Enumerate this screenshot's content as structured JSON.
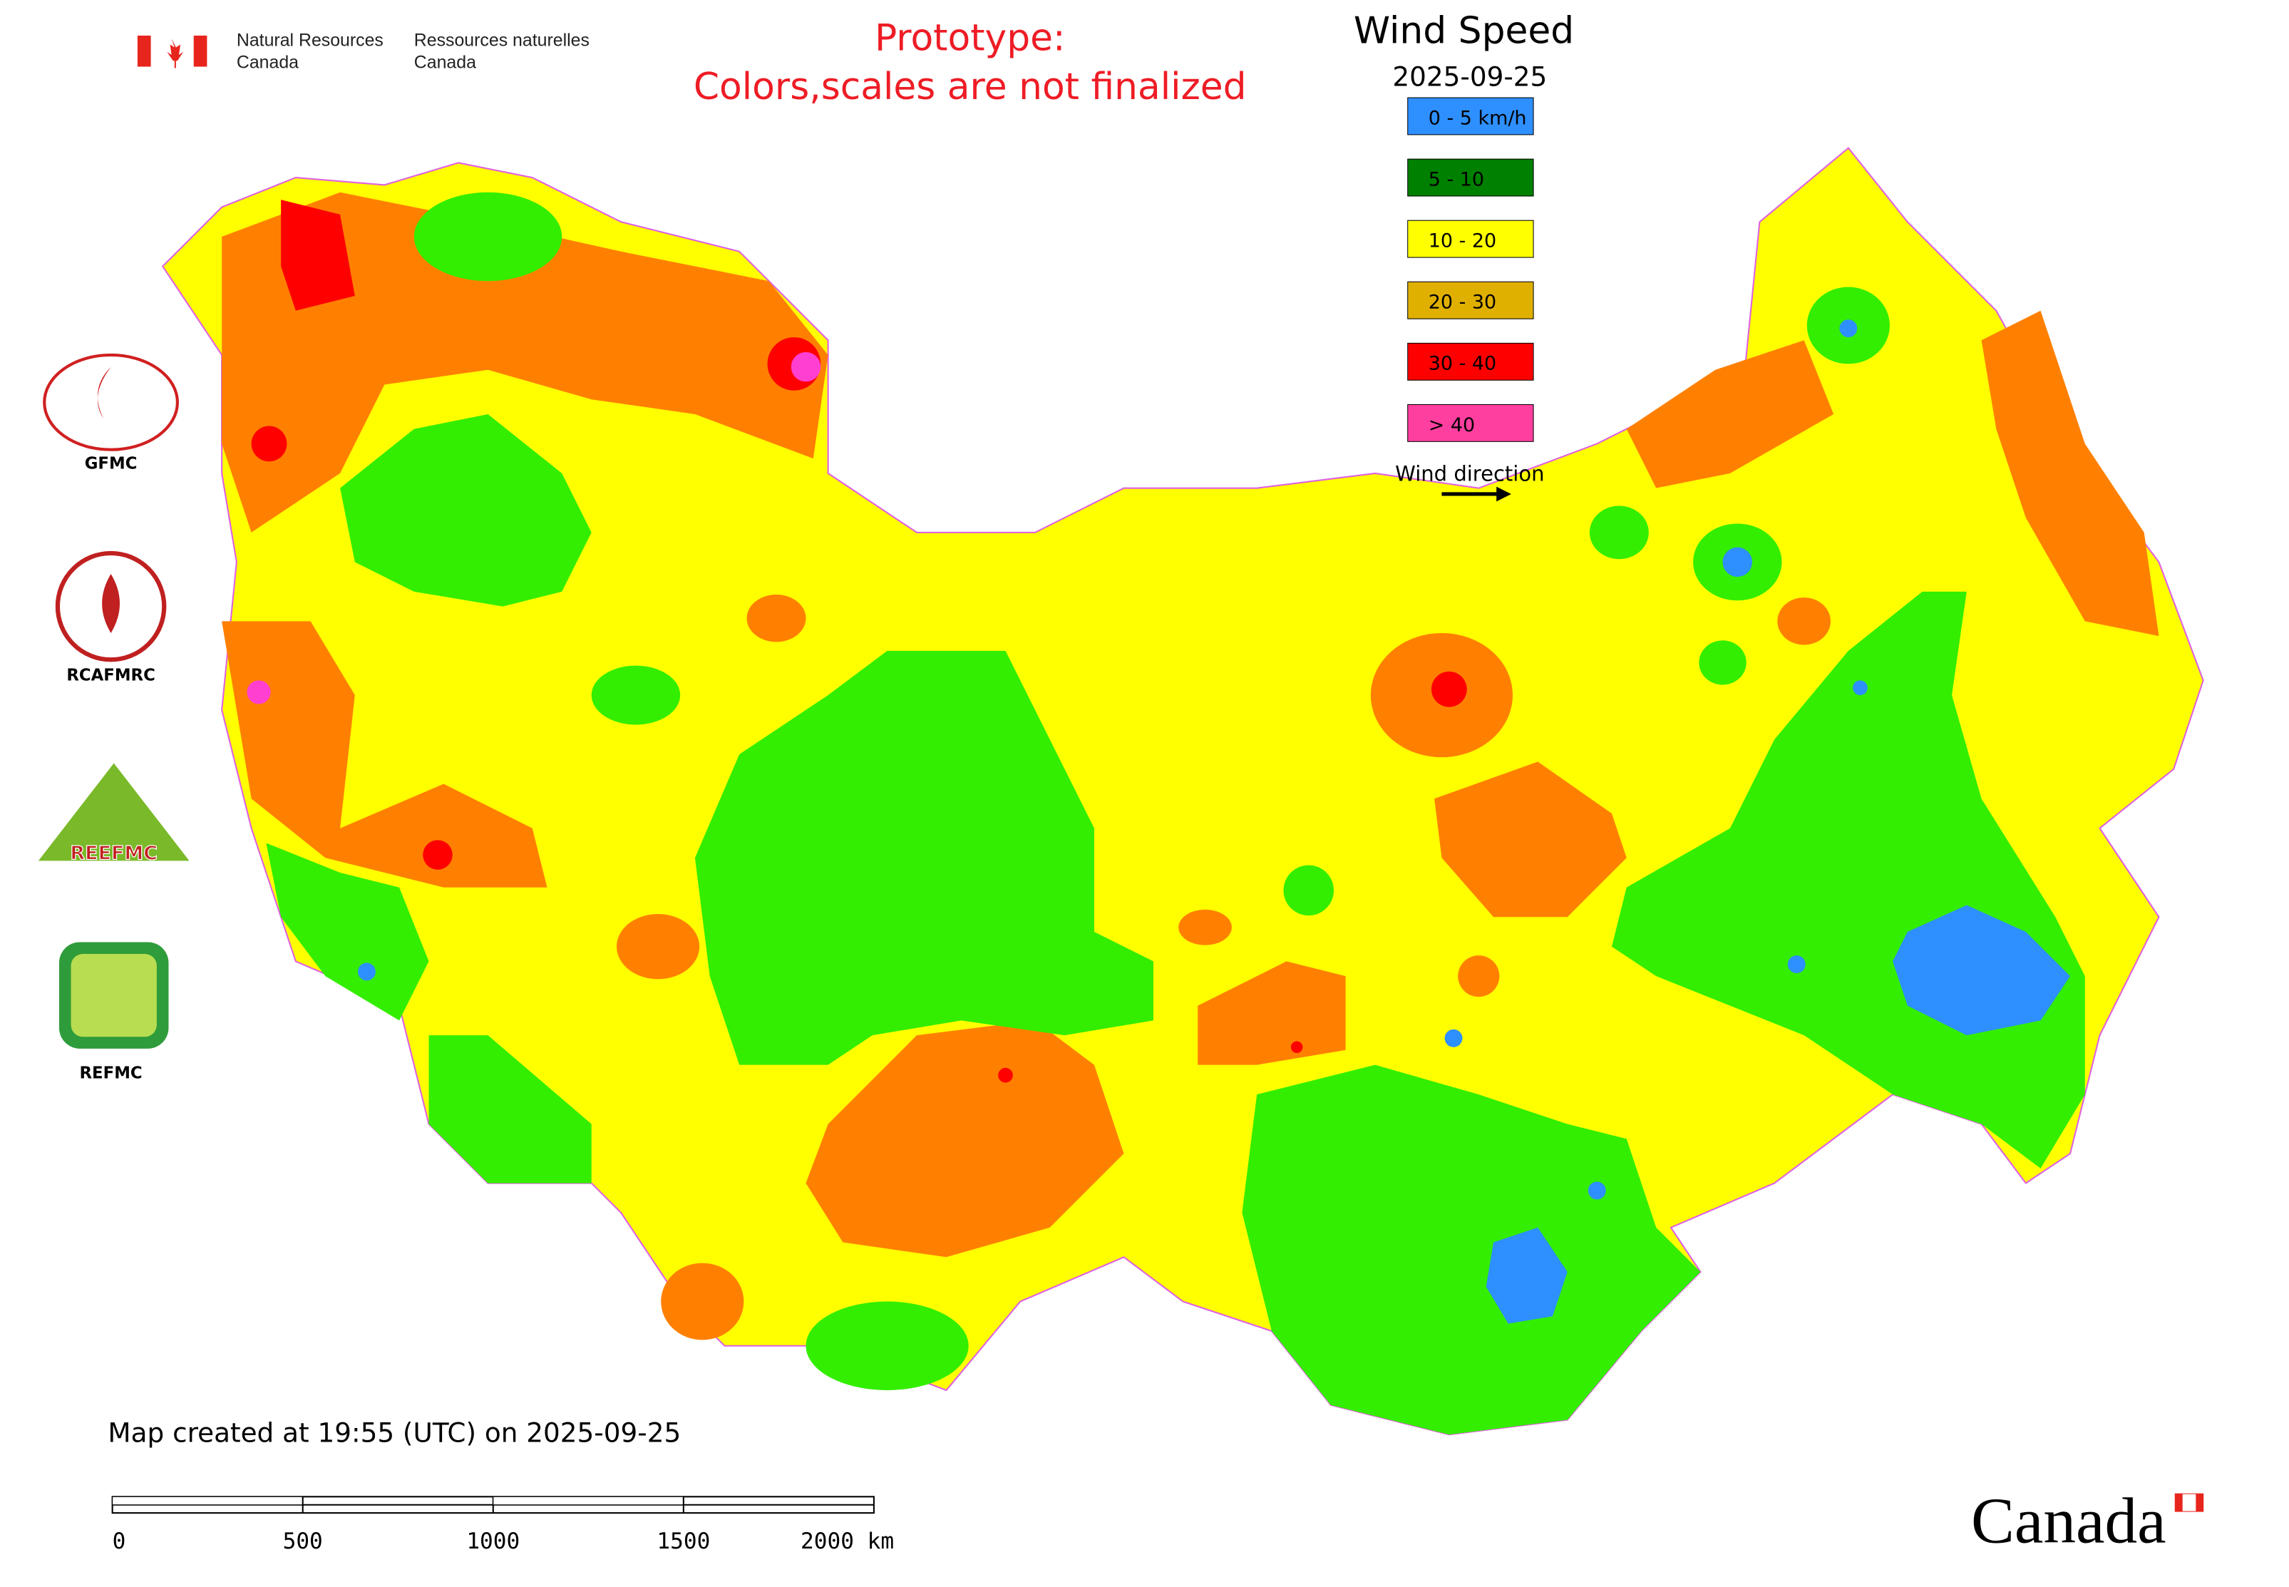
{
  "header": {
    "agency_en_1": "Natural Resources",
    "agency_en_2": "Canada",
    "agency_fr_1": "Ressources naturelles",
    "agency_fr_2": "Canada"
  },
  "notice": [
    "Prototype:",
    "Colors,scales are not finalized"
  ],
  "legend": {
    "title": "Wind Speed",
    "date": "2025-09-25",
    "items": [
      {
        "label": "0 - 5 km/h",
        "color": "#2e8fff"
      },
      {
        "label": "5 - 10",
        "color": "#008000"
      },
      {
        "label": "10 - 20",
        "color": "#ffff00"
      },
      {
        "label": "20 - 30",
        "color": "#e0b000"
      },
      {
        "label": "30 - 40",
        "color": "#ff0000"
      },
      {
        "label": "> 40",
        "color": "#ff3fa0"
      }
    ],
    "direction_label": "Wind direction"
  },
  "logos": [
    {
      "label": "GFMC"
    },
    {
      "label": "RCAFMRC"
    },
    {
      "label": "REEFMC"
    },
    {
      "label": "REFMC"
    }
  ],
  "footer": {
    "created": "Map created at 19:55 (UTC) on 2025-09-25",
    "scale": [
      "0",
      "500",
      "1000",
      "1500",
      "2000 km"
    ],
    "wordmark": "Canada"
  }
}
